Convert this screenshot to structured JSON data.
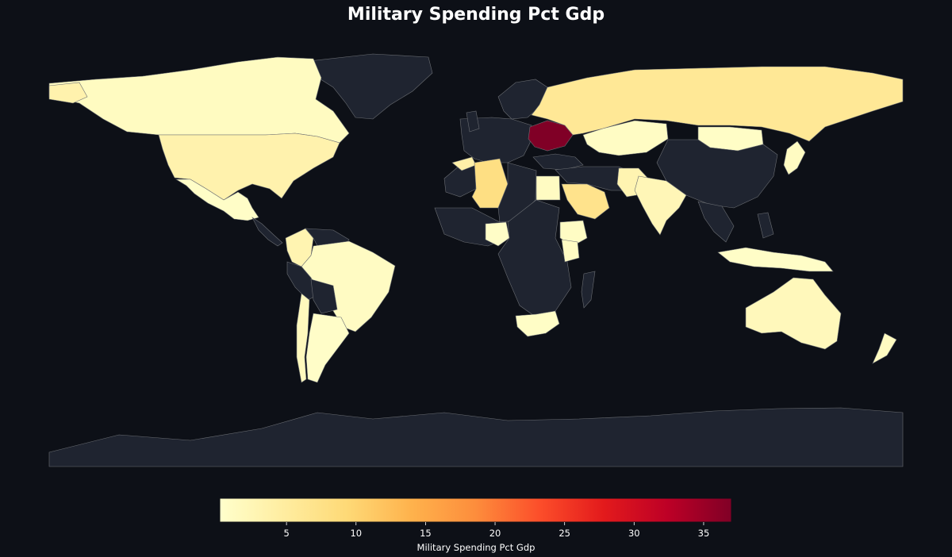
{
  "title": "Military Spending Pct Gdp",
  "colorbar": {
    "label": "Military Spending Pct Gdp",
    "min": 0.2,
    "max": 37,
    "ticks": [
      5,
      10,
      15,
      20,
      25,
      30,
      35
    ],
    "colormap": [
      "#ffffcc",
      "#ffeda0",
      "#fed976",
      "#feb24c",
      "#fd8d3c",
      "#fc4e2a",
      "#e31a1c",
      "#bd0026",
      "#800026"
    ]
  },
  "colors": {
    "background": "#0d1017",
    "no_data": "#1f2430",
    "border": "#6b6e73"
  },
  "chart_data": {
    "type": "choropleth",
    "title": "Military Spending Pct Gdp",
    "legend_position": "bottom",
    "regions": [
      {
        "name": "Canada",
        "value": 1.3
      },
      {
        "name": "United States",
        "value": 3.4
      },
      {
        "name": "Mexico",
        "value": 0.7
      },
      {
        "name": "Colombia",
        "value": 3.0
      },
      {
        "name": "Brazil",
        "value": 1.1
      },
      {
        "name": "Argentina",
        "value": 0.6
      },
      {
        "name": "Chile",
        "value": 1.8
      },
      {
        "name": "Algeria",
        "value": 8.0
      },
      {
        "name": "Morocco",
        "value": 4.0
      },
      {
        "name": "Egypt",
        "value": 1.2
      },
      {
        "name": "Saudi Arabia",
        "value": 7.0
      },
      {
        "name": "Nigeria",
        "value": 0.7
      },
      {
        "name": "Ethiopia",
        "value": 1.0
      },
      {
        "name": "Kenya",
        "value": 1.1
      },
      {
        "name": "South Africa",
        "value": 0.8
      },
      {
        "name": "Russia",
        "value": 5.9
      },
      {
        "name": "Ukraine",
        "value": 37.0
      },
      {
        "name": "Kazakhstan",
        "value": 1.0
      },
      {
        "name": "Mongolia",
        "value": 0.8
      },
      {
        "name": "India",
        "value": 2.4
      },
      {
        "name": "Pakistan",
        "value": 3.0
      },
      {
        "name": "Thailand",
        "value": 1.3
      },
      {
        "name": "Indonesia",
        "value": 0.7
      },
      {
        "name": "Japan",
        "value": 1.2
      },
      {
        "name": "Australia",
        "value": 2.0
      },
      {
        "name": "New Zealand",
        "value": 1.3
      },
      {
        "name": "Greenland",
        "value": null
      },
      {
        "name": "China",
        "value": null
      },
      {
        "name": "Central Africa",
        "value": null
      },
      {
        "name": "Antarctica",
        "value": null
      }
    ]
  }
}
